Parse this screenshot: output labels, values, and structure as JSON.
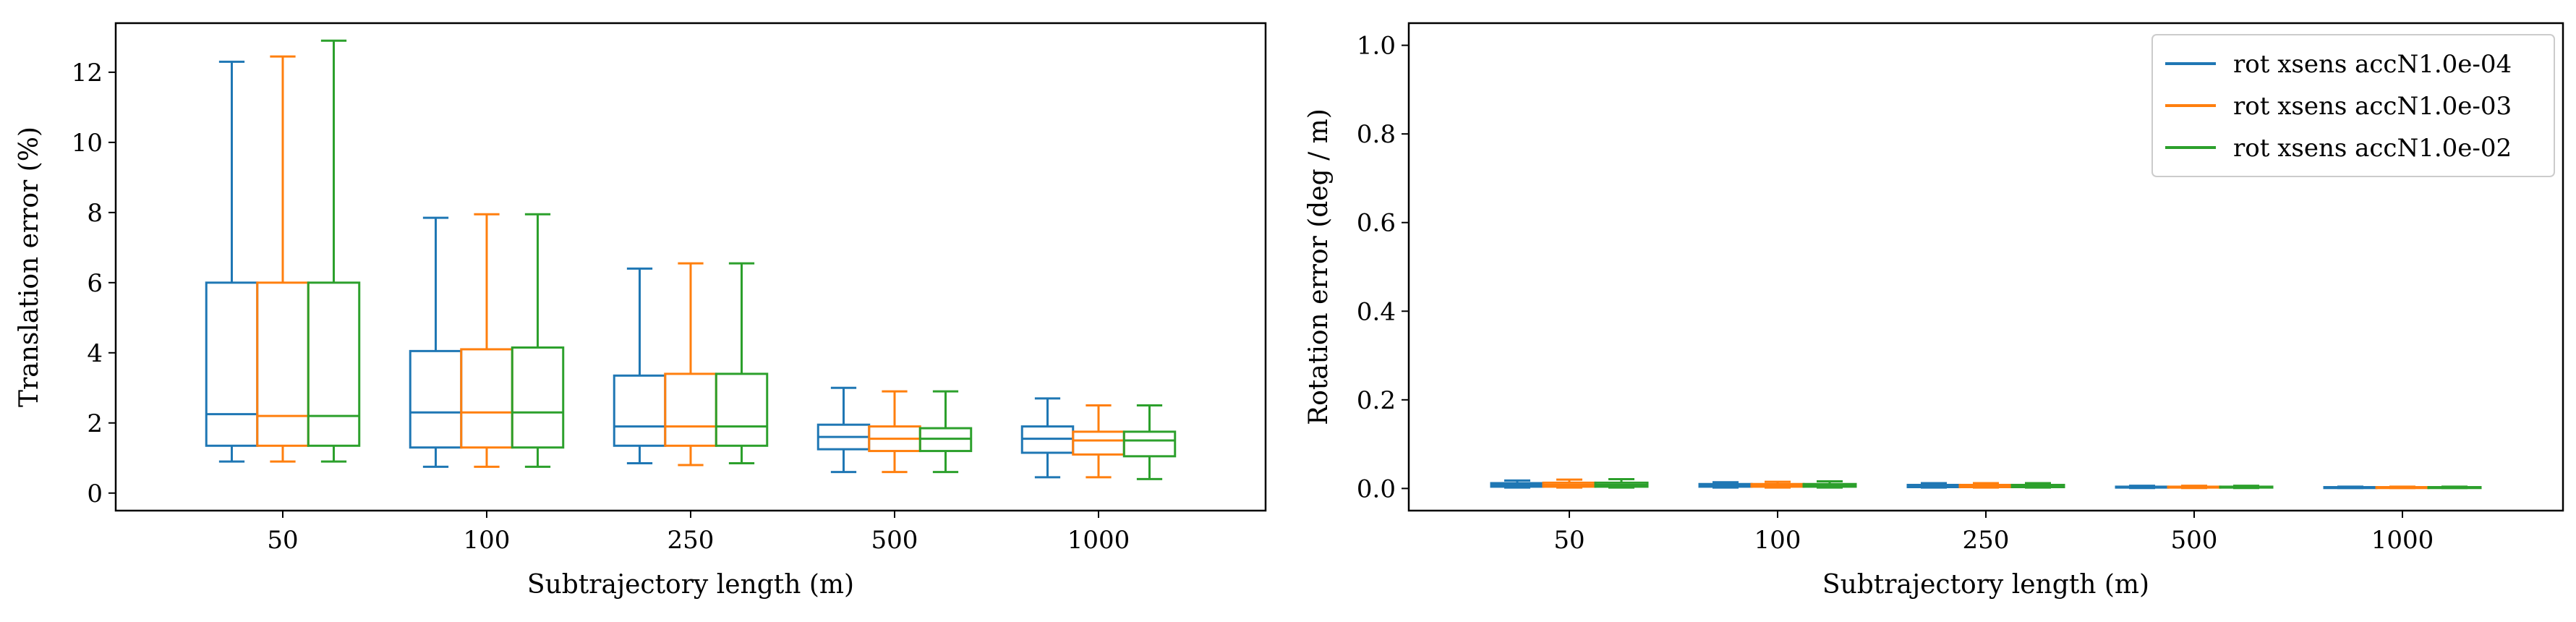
{
  "chart_data": [
    {
      "type": "box",
      "title": "",
      "xlabel": "Subtrajectory length (m)",
      "ylabel": "Translation error (%)",
      "categories": [
        "50",
        "100",
        "250",
        "500",
        "1000"
      ],
      "ylim": [
        -0.5,
        13.4
      ],
      "yticks": [
        0,
        2,
        4,
        6,
        8,
        10,
        12
      ],
      "legend": null,
      "series": [
        {
          "color": "#1f77b4",
          "boxes": [
            {
              "whislo": 0.9,
              "q1": 1.35,
              "med": 2.25,
              "q3": 6.0,
              "whishi": 12.3
            },
            {
              "whislo": 0.75,
              "q1": 1.3,
              "med": 2.3,
              "q3": 4.05,
              "whishi": 7.85
            },
            {
              "whislo": 0.85,
              "q1": 1.35,
              "med": 1.9,
              "q3": 3.35,
              "whishi": 6.4
            },
            {
              "whislo": 0.6,
              "q1": 1.25,
              "med": 1.6,
              "q3": 1.95,
              "whishi": 3.0
            },
            {
              "whislo": 0.45,
              "q1": 1.15,
              "med": 1.55,
              "q3": 1.9,
              "whishi": 2.7
            }
          ]
        },
        {
          "color": "#ff7f0e",
          "boxes": [
            {
              "whislo": 0.9,
              "q1": 1.35,
              "med": 2.2,
              "q3": 6.0,
              "whishi": 12.45
            },
            {
              "whislo": 0.75,
              "q1": 1.3,
              "med": 2.3,
              "q3": 4.1,
              "whishi": 7.95
            },
            {
              "whislo": 0.8,
              "q1": 1.35,
              "med": 1.9,
              "q3": 3.4,
              "whishi": 6.55
            },
            {
              "whislo": 0.6,
              "q1": 1.2,
              "med": 1.55,
              "q3": 1.9,
              "whishi": 2.9
            },
            {
              "whislo": 0.45,
              "q1": 1.1,
              "med": 1.5,
              "q3": 1.75,
              "whishi": 2.5
            }
          ]
        },
        {
          "color": "#2ca02c",
          "boxes": [
            {
              "whislo": 0.9,
              "q1": 1.35,
              "med": 2.2,
              "q3": 6.0,
              "whishi": 12.9
            },
            {
              "whislo": 0.75,
              "q1": 1.3,
              "med": 2.3,
              "q3": 4.15,
              "whishi": 7.95
            },
            {
              "whislo": 0.85,
              "q1": 1.35,
              "med": 1.9,
              "q3": 3.4,
              "whishi": 6.55
            },
            {
              "whislo": 0.6,
              "q1": 1.2,
              "med": 1.55,
              "q3": 1.85,
              "whishi": 2.9
            },
            {
              "whislo": 0.4,
              "q1": 1.05,
              "med": 1.5,
              "q3": 1.75,
              "whishi": 2.5
            }
          ]
        }
      ]
    },
    {
      "type": "box",
      "title": "",
      "xlabel": "Subtrajectory length (m)",
      "ylabel": "Rotation error (deg / m)",
      "categories": [
        "50",
        "100",
        "250",
        "500",
        "1000"
      ],
      "ylim": [
        -0.05,
        1.05
      ],
      "yticks": [
        0.0,
        0.2,
        0.4,
        0.6,
        0.8,
        1.0
      ],
      "legend": "top-right",
      "series": [
        {
          "name": "rot xsens accN1.0e-04",
          "color": "#1f77b4",
          "boxes": [
            {
              "whislo": 0.002,
              "q1": 0.004,
              "med": 0.008,
              "q3": 0.012,
              "whishi": 0.018
            },
            {
              "whislo": 0.002,
              "q1": 0.004,
              "med": 0.007,
              "q3": 0.01,
              "whishi": 0.014
            },
            {
              "whislo": 0.002,
              "q1": 0.003,
              "med": 0.005,
              "q3": 0.008,
              "whishi": 0.012
            },
            {
              "whislo": 0.001,
              "q1": 0.002,
              "med": 0.003,
              "q3": 0.004,
              "whishi": 0.006
            },
            {
              "whislo": 0.001,
              "q1": 0.001,
              "med": 0.002,
              "q3": 0.003,
              "whishi": 0.004
            }
          ]
        },
        {
          "name": "rot xsens accN1.0e-03",
          "color": "#ff7f0e",
          "boxes": [
            {
              "whislo": 0.002,
              "q1": 0.004,
              "med": 0.008,
              "q3": 0.013,
              "whishi": 0.02
            },
            {
              "whislo": 0.002,
              "q1": 0.004,
              "med": 0.007,
              "q3": 0.01,
              "whishi": 0.015
            },
            {
              "whislo": 0.002,
              "q1": 0.003,
              "med": 0.005,
              "q3": 0.008,
              "whishi": 0.012
            },
            {
              "whislo": 0.001,
              "q1": 0.002,
              "med": 0.003,
              "q3": 0.004,
              "whishi": 0.006
            },
            {
              "whislo": 0.001,
              "q1": 0.001,
              "med": 0.002,
              "q3": 0.003,
              "whishi": 0.004
            }
          ]
        },
        {
          "name": "rot xsens accN1.0e-02",
          "color": "#2ca02c",
          "boxes": [
            {
              "whislo": 0.002,
              "q1": 0.004,
              "med": 0.008,
              "q3": 0.013,
              "whishi": 0.021
            },
            {
              "whislo": 0.002,
              "q1": 0.004,
              "med": 0.007,
              "q3": 0.01,
              "whishi": 0.016
            },
            {
              "whislo": 0.002,
              "q1": 0.003,
              "med": 0.005,
              "q3": 0.008,
              "whishi": 0.012
            },
            {
              "whislo": 0.001,
              "q1": 0.002,
              "med": 0.003,
              "q3": 0.004,
              "whishi": 0.006
            },
            {
              "whislo": 0.001,
              "q1": 0.001,
              "med": 0.002,
              "q3": 0.003,
              "whishi": 0.004
            }
          ]
        }
      ]
    }
  ]
}
